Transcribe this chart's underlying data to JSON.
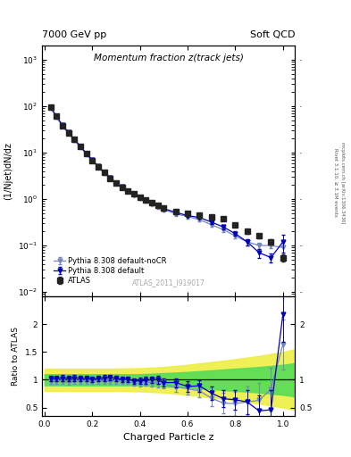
{
  "title_left": "7000 GeV pp",
  "title_right": "Soft QCD",
  "plot_title": "Momentum fraction z(track jets)",
  "ylabel_main": "(1/Njet)dN/dz",
  "ylabel_ratio": "Ratio to ATLAS",
  "xlabel": "Charged Particle z",
  "right_label": "Rivet 3.1.10, ≥ 3.1M events",
  "right_label2": "mcplots.cern.ch [arXiv:1306.3436]",
  "watermark": "ATLAS_2011_I919017",
  "ylim_main": [
    0.008,
    2000
  ],
  "ylim_ratio": [
    0.35,
    2.5
  ],
  "xlim": [
    -0.01,
    1.05
  ],
  "atlas_x": [
    0.025,
    0.05,
    0.075,
    0.1,
    0.125,
    0.15,
    0.175,
    0.2,
    0.225,
    0.25,
    0.275,
    0.3,
    0.325,
    0.35,
    0.375,
    0.4,
    0.425,
    0.45,
    0.475,
    0.5,
    0.55,
    0.6,
    0.65,
    0.7,
    0.75,
    0.8,
    0.85,
    0.9,
    0.95,
    1.0
  ],
  "atlas_y": [
    95,
    60,
    38,
    27,
    19,
    13.5,
    9.5,
    6.8,
    5.0,
    3.7,
    2.8,
    2.2,
    1.8,
    1.5,
    1.3,
    1.1,
    0.95,
    0.82,
    0.72,
    0.65,
    0.55,
    0.5,
    0.45,
    0.42,
    0.38,
    0.28,
    0.2,
    0.16,
    0.12,
    0.055
  ],
  "atlas_yerr": [
    5,
    3.5,
    2.5,
    1.8,
    1.3,
    0.9,
    0.65,
    0.45,
    0.33,
    0.25,
    0.18,
    0.14,
    0.11,
    0.1,
    0.09,
    0.08,
    0.07,
    0.06,
    0.055,
    0.05,
    0.04,
    0.04,
    0.035,
    0.03,
    0.03,
    0.025,
    0.02,
    0.018,
    0.015,
    0.01
  ],
  "pythia_default_x": [
    0.025,
    0.05,
    0.075,
    0.1,
    0.125,
    0.15,
    0.175,
    0.2,
    0.225,
    0.25,
    0.275,
    0.3,
    0.325,
    0.35,
    0.375,
    0.4,
    0.425,
    0.45,
    0.475,
    0.5,
    0.55,
    0.6,
    0.65,
    0.7,
    0.75,
    0.8,
    0.85,
    0.9,
    0.95,
    1.0
  ],
  "pythia_default_y": [
    97,
    61,
    39,
    27.5,
    19.5,
    13.8,
    9.7,
    6.9,
    5.1,
    3.8,
    2.9,
    2.25,
    1.82,
    1.52,
    1.28,
    1.08,
    0.94,
    0.82,
    0.72,
    0.62,
    0.52,
    0.44,
    0.4,
    0.32,
    0.25,
    0.18,
    0.12,
    0.07,
    0.055,
    0.12
  ],
  "pythia_default_yerr": [
    5,
    3.5,
    2.5,
    1.8,
    1.3,
    0.9,
    0.65,
    0.45,
    0.33,
    0.25,
    0.18,
    0.14,
    0.11,
    0.1,
    0.09,
    0.08,
    0.07,
    0.06,
    0.055,
    0.05,
    0.04,
    0.035,
    0.03,
    0.03,
    0.025,
    0.02,
    0.018,
    0.015,
    0.012,
    0.05
  ],
  "pythia_nocr_x": [
    0.025,
    0.05,
    0.075,
    0.1,
    0.125,
    0.15,
    0.175,
    0.2,
    0.225,
    0.25,
    0.275,
    0.3,
    0.325,
    0.35,
    0.375,
    0.4,
    0.425,
    0.45,
    0.475,
    0.5,
    0.55,
    0.6,
    0.65,
    0.7,
    0.75,
    0.8,
    0.85,
    0.9,
    0.95,
    1.0
  ],
  "pythia_nocr_y": [
    92,
    58,
    37,
    26,
    18.5,
    13.2,
    9.3,
    6.6,
    4.9,
    3.6,
    2.75,
    2.15,
    1.75,
    1.46,
    1.22,
    1.03,
    0.9,
    0.78,
    0.68,
    0.6,
    0.48,
    0.42,
    0.36,
    0.28,
    0.22,
    0.16,
    0.12,
    0.1,
    0.1,
    0.09
  ],
  "pythia_nocr_yerr": [
    5,
    3.5,
    2.5,
    1.8,
    1.3,
    0.9,
    0.65,
    0.45,
    0.33,
    0.25,
    0.18,
    0.14,
    0.11,
    0.1,
    0.09,
    0.08,
    0.07,
    0.06,
    0.055,
    0.05,
    0.04,
    0.035,
    0.03,
    0.03,
    0.025,
    0.02,
    0.018,
    0.015,
    0.012,
    0.04
  ],
  "color_atlas": "#222222",
  "color_default": "#0000bb",
  "color_nocr": "#7788bb",
  "color_green_band": "#55dd55",
  "color_yellow_band": "#eeee44",
  "ratio_default_x": [
    0.025,
    0.05,
    0.075,
    0.1,
    0.125,
    0.15,
    0.175,
    0.2,
    0.225,
    0.25,
    0.275,
    0.3,
    0.325,
    0.35,
    0.375,
    0.4,
    0.425,
    0.45,
    0.475,
    0.5,
    0.55,
    0.6,
    0.65,
    0.7,
    0.75,
    0.8,
    0.85,
    0.9,
    0.95,
    1.0
  ],
  "ratio_default_y": [
    1.02,
    1.02,
    1.03,
    1.02,
    1.03,
    1.02,
    1.02,
    1.01,
    1.02,
    1.03,
    1.04,
    1.02,
    1.01,
    1.01,
    0.98,
    0.98,
    0.99,
    1.0,
    1.0,
    0.95,
    0.95,
    0.88,
    0.89,
    0.76,
    0.66,
    0.64,
    0.6,
    0.44,
    0.46,
    2.18
  ],
  "ratio_default_yerr": [
    0.05,
    0.05,
    0.05,
    0.05,
    0.05,
    0.05,
    0.05,
    0.05,
    0.05,
    0.05,
    0.05,
    0.05,
    0.05,
    0.05,
    0.05,
    0.06,
    0.06,
    0.06,
    0.07,
    0.07,
    0.08,
    0.09,
    0.1,
    0.12,
    0.15,
    0.18,
    0.22,
    0.28,
    0.35,
    0.5
  ],
  "ratio_nocr_x": [
    0.025,
    0.05,
    0.075,
    0.1,
    0.125,
    0.15,
    0.175,
    0.2,
    0.225,
    0.25,
    0.275,
    0.3,
    0.325,
    0.35,
    0.375,
    0.4,
    0.425,
    0.45,
    0.475,
    0.5,
    0.55,
    0.6,
    0.65,
    0.7,
    0.75,
    0.8,
    0.85,
    0.9,
    0.95,
    1.0
  ],
  "ratio_nocr_y": [
    0.97,
    0.97,
    0.97,
    0.96,
    0.97,
    0.98,
    0.98,
    0.97,
    0.98,
    0.97,
    0.98,
    0.98,
    0.97,
    0.97,
    0.94,
    0.94,
    0.95,
    0.95,
    0.94,
    0.92,
    0.87,
    0.84,
    0.8,
    0.67,
    0.58,
    0.57,
    0.6,
    0.63,
    0.83,
    1.64
  ],
  "ratio_nocr_yerr": [
    0.05,
    0.05,
    0.05,
    0.05,
    0.05,
    0.05,
    0.05,
    0.05,
    0.05,
    0.05,
    0.05,
    0.05,
    0.05,
    0.05,
    0.05,
    0.06,
    0.06,
    0.07,
    0.07,
    0.08,
    0.09,
    0.1,
    0.12,
    0.15,
    0.18,
    0.22,
    0.28,
    0.32,
    0.38,
    0.45
  ],
  "green_band_x": [
    0.0,
    0.05,
    0.1,
    0.2,
    0.3,
    0.4,
    0.5,
    0.6,
    0.7,
    0.8,
    0.9,
    1.0,
    1.05
  ],
  "green_band_low": [
    0.9,
    0.9,
    0.9,
    0.9,
    0.9,
    0.9,
    0.88,
    0.86,
    0.83,
    0.8,
    0.77,
    0.73,
    0.7
  ],
  "green_band_high": [
    1.1,
    1.1,
    1.1,
    1.1,
    1.1,
    1.1,
    1.12,
    1.14,
    1.17,
    1.2,
    1.23,
    1.27,
    1.3
  ],
  "yellow_band_low": [
    0.8,
    0.8,
    0.8,
    0.8,
    0.8,
    0.79,
    0.77,
    0.73,
    0.68,
    0.63,
    0.57,
    0.5,
    0.46
  ],
  "yellow_band_high": [
    1.2,
    1.2,
    1.2,
    1.2,
    1.2,
    1.21,
    1.23,
    1.27,
    1.32,
    1.37,
    1.43,
    1.5,
    1.55
  ]
}
